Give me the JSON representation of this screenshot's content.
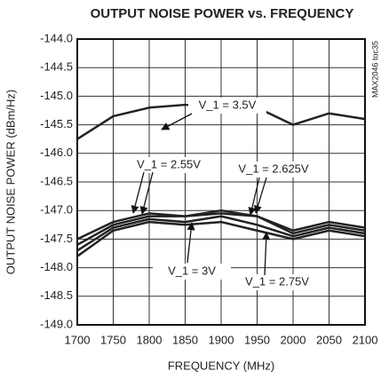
{
  "chart_data": {
    "type": "line",
    "title": "OUTPUT NOISE POWER vs. FREQUENCY",
    "xlabel": "FREQUENCY (MHz)",
    "ylabel": "OUTPUT NOISE POWER (dBm/Hz)",
    "side_note": "MAX2046 toc35",
    "x": [
      1700,
      1750,
      1800,
      1850,
      1900,
      1950,
      2000,
      2050,
      2100
    ],
    "series": [
      {
        "name": "V_1 = 3.5V",
        "color": "#222222",
        "values": [
          -145.75,
          -145.35,
          -145.2,
          -145.15,
          -145.2,
          -145.2,
          -145.5,
          -145.3,
          -145.4
        ]
      },
      {
        "name": "V_1 = 2.55V",
        "color": "#222222",
        "values": [
          -147.5,
          -147.2,
          -147.05,
          -147.1,
          -147.05,
          -147.1,
          -147.35,
          -147.2,
          -147.3
        ]
      },
      {
        "name": "V_1 = 2.625V",
        "color": "#222222",
        "values": [
          -147.6,
          -147.25,
          -147.1,
          -147.1,
          -147.0,
          -147.1,
          -147.4,
          -147.25,
          -147.35
        ]
      },
      {
        "name": "V_1 = 2.75V",
        "color": "#222222",
        "values": [
          -147.7,
          -147.3,
          -147.15,
          -147.2,
          -147.1,
          -147.25,
          -147.45,
          -147.3,
          -147.4
        ]
      },
      {
        "name": "V_1 = 3V",
        "color": "#222222",
        "values": [
          -147.8,
          -147.35,
          -147.2,
          -147.25,
          -147.2,
          -147.35,
          -147.5,
          -147.35,
          -147.45
        ]
      }
    ],
    "xlim": [
      1700,
      2100
    ],
    "xticks": [
      1700,
      1750,
      1800,
      1850,
      1900,
      1950,
      2000,
      2050,
      2100
    ],
    "ylim": [
      -149,
      -144
    ],
    "yticks": [
      {
        "value": -144,
        "label": "-144.0"
      },
      -144.5,
      {
        "value": -145,
        "label": "-145.0"
      },
      -145.5,
      {
        "value": -146,
        "label": "-146.0"
      },
      -146.5,
      {
        "value": -147,
        "label": "-147.0"
      },
      -147.5,
      {
        "value": -148,
        "label": "-148.0"
      },
      -148.5,
      {
        "value": -149,
        "label": "-149.0"
      }
    ],
    "grid": true
  }
}
